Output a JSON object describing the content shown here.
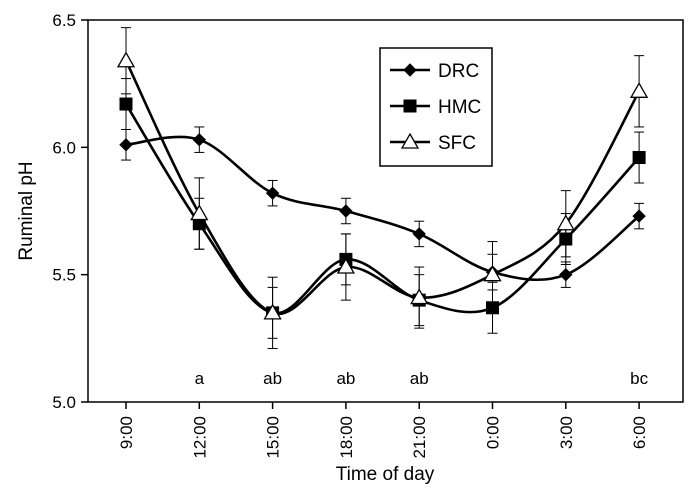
{
  "chart_data": {
    "type": "line",
    "xlabel": "Time of day",
    "ylabel": "Ruminal pH",
    "categories": [
      "9:00",
      "12:00",
      "15:00",
      "18:00",
      "21:00",
      "0:00",
      "3:00",
      "6:00"
    ],
    "ylim": [
      5.0,
      6.5
    ],
    "yticks": [
      "5.0",
      "5.5",
      "6.0",
      "6.5"
    ],
    "grid": false,
    "legend_position": "top-right",
    "series": [
      {
        "name": "DRC",
        "marker": "diamond-filled",
        "values": [
          6.01,
          6.03,
          5.82,
          5.75,
          5.66,
          5.51,
          5.5,
          5.73
        ],
        "errors": [
          0.06,
          0.05,
          0.05,
          0.05,
          0.05,
          0.07,
          0.05,
          0.05
        ]
      },
      {
        "name": "HMC",
        "marker": "square-filled",
        "values": [
          6.17,
          5.7,
          5.35,
          5.56,
          5.4,
          5.37,
          5.64,
          5.96
        ],
        "errors": [
          0.1,
          0.1,
          0.1,
          0.1,
          0.1,
          0.1,
          0.1,
          0.1
        ]
      },
      {
        "name": "SFC",
        "marker": "triangle-open",
        "values": [
          6.34,
          5.74,
          5.35,
          5.53,
          5.41,
          5.5,
          5.7,
          6.22
        ],
        "errors": [
          0.13,
          0.14,
          0.14,
          0.13,
          0.12,
          0.13,
          0.13,
          0.14
        ]
      }
    ],
    "annotations": [
      "",
      "a",
      "ab",
      "ab",
      "ab",
      "",
      "",
      "bc"
    ],
    "colors": {
      "line": "#000000",
      "background": "#ffffff"
    }
  }
}
